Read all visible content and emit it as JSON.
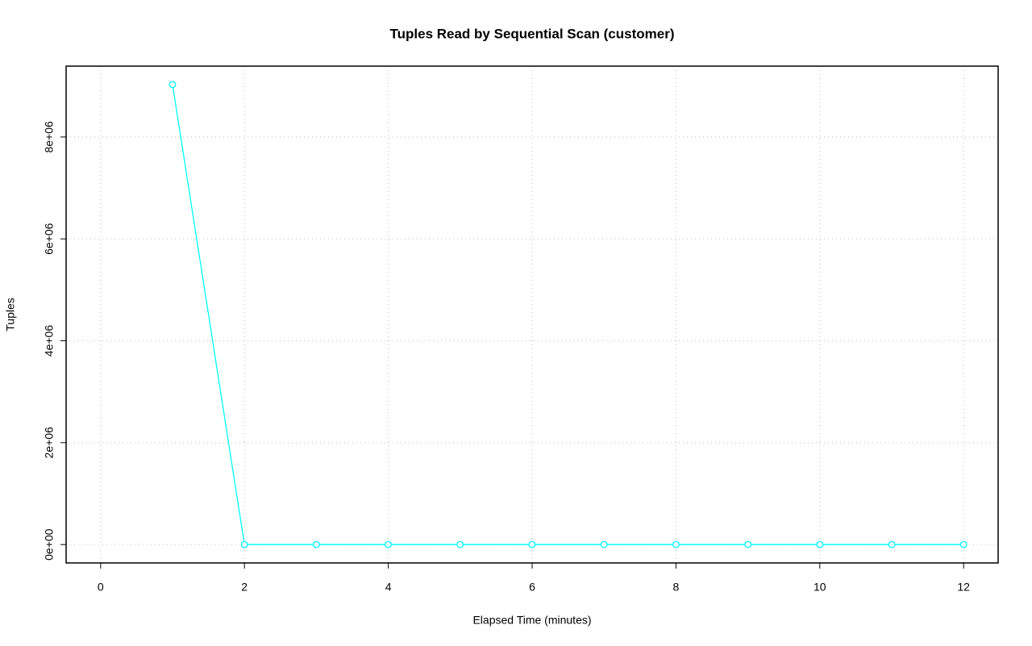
{
  "chart_data": {
    "type": "line",
    "title": "Tuples Read by Sequential Scan (customer)",
    "x_label": "Elapsed Time (minutes)",
    "y_label": "Tuples",
    "x": [
      1,
      2,
      3,
      4,
      5,
      6,
      7,
      8,
      9,
      10,
      11,
      12
    ],
    "series": [
      {
        "name": "customer",
        "color": "#00ffff",
        "values": [
          9030000,
          0,
          0,
          0,
          0,
          0,
          0,
          0,
          0,
          0,
          0,
          0
        ]
      }
    ],
    "xlim": [
      -0.48,
      12.48
    ],
    "ylim": [
      -361200,
      9391200
    ],
    "xticks": [
      0,
      2,
      4,
      6,
      8,
      10,
      12
    ],
    "yticks": [
      {
        "value": 0,
        "label": "0e+00"
      },
      {
        "value": 2000000,
        "label": "2e+06"
      },
      {
        "value": 4000000,
        "label": "4e+06"
      },
      {
        "value": 6000000,
        "label": "6e+06"
      },
      {
        "value": 8000000,
        "label": "8e+06"
      }
    ],
    "grid": true
  }
}
